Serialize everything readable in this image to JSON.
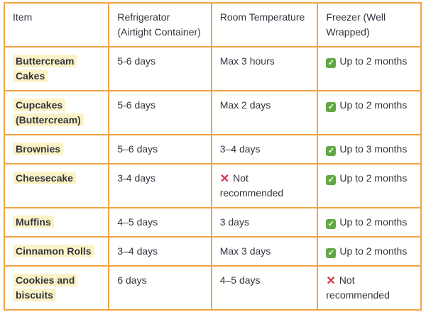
{
  "colors": {
    "border": "#F2A444",
    "highlight": "#FBF3C6",
    "text": "#33343E",
    "check_green": "#62A845",
    "cross_red": "#D32F45",
    "page_bg": "#FFFFFF"
  },
  "icons": {
    "check": "✓",
    "cross": "✕"
  },
  "table": {
    "columns": [
      "Item",
      "Refrigerator (Airtight Container)",
      "Room Temperature",
      "Freezer (Well Wrapped)"
    ],
    "rows": [
      {
        "item": "Buttercream Cakes",
        "refrigerator": {
          "icon": null,
          "text": "5-6 days"
        },
        "room_temperature": {
          "icon": null,
          "text": "Max 3 hours"
        },
        "freezer": {
          "icon": "check",
          "text": "Up to 2 months"
        }
      },
      {
        "item": "Cupcakes (Buttercream)",
        "refrigerator": {
          "icon": null,
          "text": "5-6 days"
        },
        "room_temperature": {
          "icon": null,
          "text": "Max 2 days"
        },
        "freezer": {
          "icon": "check",
          "text": "Up to 2 months"
        }
      },
      {
        "item": "Brownies",
        "refrigerator": {
          "icon": null,
          "text": "5–6 days"
        },
        "room_temperature": {
          "icon": null,
          "text": "3–4 days"
        },
        "freezer": {
          "icon": "check",
          "text": "Up to 3 months"
        }
      },
      {
        "item": "Cheesecake",
        "refrigerator": {
          "icon": null,
          "text": "3-4 days"
        },
        "room_temperature": {
          "icon": "cross",
          "text": "Not recommended"
        },
        "freezer": {
          "icon": "check",
          "text": "Up to 2 months"
        }
      },
      {
        "item": "Muffins",
        "refrigerator": {
          "icon": null,
          "text": "4–5 days"
        },
        "room_temperature": {
          "icon": null,
          "text": "3 days"
        },
        "freezer": {
          "icon": "check",
          "text": "Up to 2 months"
        }
      },
      {
        "item": "Cinnamon Rolls",
        "refrigerator": {
          "icon": null,
          "text": "3–4 days"
        },
        "room_temperature": {
          "icon": null,
          "text": "Max 3 days"
        },
        "freezer": {
          "icon": "check",
          "text": "Up to 2 months"
        }
      },
      {
        "item": "Cookies and biscuits",
        "refrigerator": {
          "icon": null,
          "text": "6 days"
        },
        "room_temperature": {
          "icon": null,
          "text": "4–5 days"
        },
        "freezer": {
          "icon": "cross",
          "text": "Not recommended"
        }
      }
    ]
  }
}
